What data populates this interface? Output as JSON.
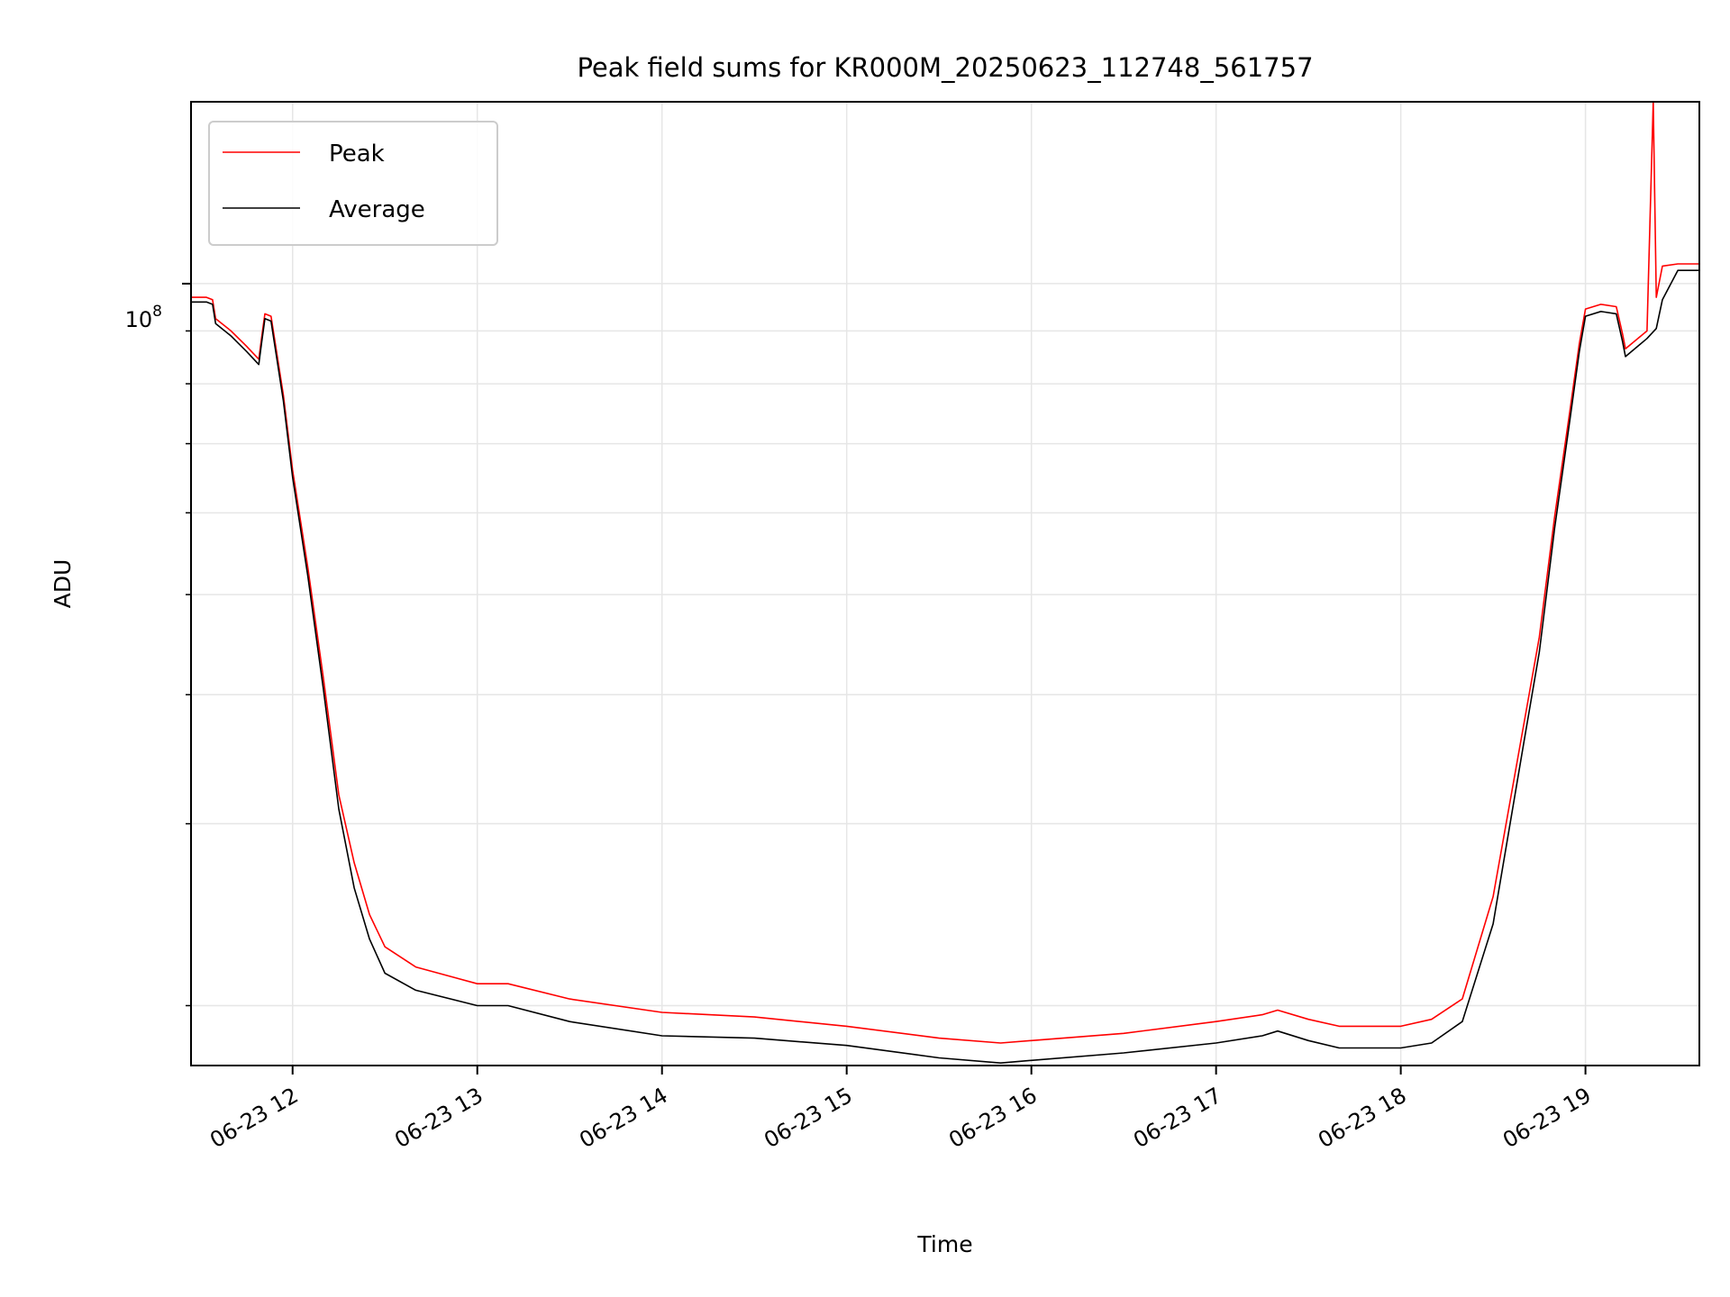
{
  "chart_data": {
    "type": "line",
    "title": "Peak field sums for KR000M_20250623_112748_561757",
    "xlabel": "Time",
    "ylabel": "ADU",
    "yscale": "log",
    "y_major_tick_label": "10^8",
    "y_major_tick_base": "10",
    "y_major_tick_exp": "8",
    "y_major_tick_value": 100000000,
    "y_minor_ticks": [
      20000000,
      30000000,
      40000000,
      50000000,
      60000000,
      70000000,
      80000000,
      90000000
    ],
    "ylim": [
      17500000,
      150000000
    ],
    "xlim": [
      "2025-06-23 11:27",
      "2025-06-23 19:37"
    ],
    "x_tick_labels": [
      "06-23 12",
      "06-23 13",
      "06-23 14",
      "06-23 15",
      "06-23 16",
      "06-23 17",
      "06-23 18",
      "06-23 19"
    ],
    "x_tick_times": [
      "2025-06-23 12:00",
      "2025-06-23 13:00",
      "2025-06-23 14:00",
      "2025-06-23 15:00",
      "2025-06-23 16:00",
      "2025-06-23 17:00",
      "2025-06-23 18:00",
      "2025-06-23 19:00"
    ],
    "grid": true,
    "legend_position": "upper left",
    "series": [
      {
        "name": "Average",
        "color": "#000000",
        "x": [
          "2025-06-23 11:27",
          "2025-06-23 11:32",
          "2025-06-23 11:34",
          "2025-06-23 11:35",
          "2025-06-23 11:40",
          "2025-06-23 11:45",
          "2025-06-23 11:49",
          "2025-06-23 11:50",
          "2025-06-23 11:51",
          "2025-06-23 11:53",
          "2025-06-23 11:54",
          "2025-06-23 11:57",
          "2025-06-23 12:00",
          "2025-06-23 12:05",
          "2025-06-23 12:10",
          "2025-06-23 12:15",
          "2025-06-23 12:20",
          "2025-06-23 12:25",
          "2025-06-23 12:30",
          "2025-06-23 12:40",
          "2025-06-23 13:00",
          "2025-06-23 13:10",
          "2025-06-23 13:30",
          "2025-06-23 14:00",
          "2025-06-23 14:30",
          "2025-06-23 15:00",
          "2025-06-23 15:30",
          "2025-06-23 15:50",
          "2025-06-23 16:00",
          "2025-06-23 16:30",
          "2025-06-23 17:00",
          "2025-06-23 17:15",
          "2025-06-23 17:20",
          "2025-06-23 17:30",
          "2025-06-23 17:40",
          "2025-06-23 18:00",
          "2025-06-23 18:10",
          "2025-06-23 18:20",
          "2025-06-23 18:30",
          "2025-06-23 18:40",
          "2025-06-23 18:45",
          "2025-06-23 18:50",
          "2025-06-23 18:55",
          "2025-06-23 18:58",
          "2025-06-23 19:00",
          "2025-06-23 19:05",
          "2025-06-23 19:10",
          "2025-06-23 19:12",
          "2025-06-23 19:13",
          "2025-06-23 19:20",
          "2025-06-23 19:23",
          "2025-06-23 19:25",
          "2025-06-23 19:30",
          "2025-06-23 19:37"
        ],
        "y": [
          96000000,
          96000000,
          95500000,
          91500000,
          89000000,
          86000000,
          83500000,
          88000000,
          92500000,
          92000000,
          88000000,
          77000000,
          65000000,
          52000000,
          40500000,
          31000000,
          26000000,
          23200000,
          21500000,
          20700000,
          20000000,
          20000000,
          19300000,
          18700000,
          18600000,
          18300000,
          17800000,
          17600000,
          17700000,
          18000000,
          18400000,
          18700000,
          18900000,
          18500000,
          18200000,
          18200000,
          18400000,
          19300000,
          24000000,
          36000000,
          44000000,
          58000000,
          74000000,
          86000000,
          93000000,
          94000000,
          93500000,
          88000000,
          85000000,
          88500000,
          90500000,
          96500000,
          103000000,
          103000000
        ]
      },
      {
        "name": "Peak",
        "color": "#ff0000",
        "x": [
          "2025-06-23 11:27",
          "2025-06-23 11:32",
          "2025-06-23 11:34",
          "2025-06-23 11:35",
          "2025-06-23 11:40",
          "2025-06-23 11:45",
          "2025-06-23 11:49",
          "2025-06-23 11:50",
          "2025-06-23 11:51",
          "2025-06-23 11:53",
          "2025-06-23 11:54",
          "2025-06-23 11:57",
          "2025-06-23 12:00",
          "2025-06-23 12:05",
          "2025-06-23 12:10",
          "2025-06-23 12:15",
          "2025-06-23 12:20",
          "2025-06-23 12:25",
          "2025-06-23 12:30",
          "2025-06-23 12:40",
          "2025-06-23 13:00",
          "2025-06-23 13:10",
          "2025-06-23 13:30",
          "2025-06-23 14:00",
          "2025-06-23 14:30",
          "2025-06-23 15:00",
          "2025-06-23 15:30",
          "2025-06-23 15:50",
          "2025-06-23 16:00",
          "2025-06-23 16:30",
          "2025-06-23 17:00",
          "2025-06-23 17:15",
          "2025-06-23 17:20",
          "2025-06-23 17:30",
          "2025-06-23 17:40",
          "2025-06-23 18:00",
          "2025-06-23 18:10",
          "2025-06-23 18:20",
          "2025-06-23 18:30",
          "2025-06-23 18:40",
          "2025-06-23 18:45",
          "2025-06-23 18:50",
          "2025-06-23 18:55",
          "2025-06-23 18:58",
          "2025-06-23 19:00",
          "2025-06-23 19:05",
          "2025-06-23 19:10",
          "2025-06-23 19:12",
          "2025-06-23 19:13",
          "2025-06-23 19:20",
          "2025-06-23 19:22",
          "2025-06-23 19:23",
          "2025-06-23 19:25",
          "2025-06-23 19:30",
          "2025-06-23 19:37"
        ],
        "y": [
          97000000,
          97000000,
          96500000,
          92500000,
          90000000,
          87000000,
          84500000,
          89000000,
          93500000,
          93000000,
          89000000,
          78000000,
          66000000,
          53000000,
          41500000,
          32000000,
          27500000,
          24500000,
          22800000,
          21800000,
          21000000,
          21000000,
          20300000,
          19700000,
          19500000,
          19100000,
          18600000,
          18400000,
          18500000,
          18800000,
          19300000,
          19600000,
          19800000,
          19400000,
          19100000,
          19100000,
          19400000,
          20300000,
          25500000,
          37500000,
          45500000,
          59500000,
          75500000,
          87500000,
          94500000,
          95500000,
          95000000,
          89500000,
          86500000,
          90000000,
          150000000,
          97000000,
          104000000,
          104500000,
          104500000
        ]
      }
    ]
  }
}
